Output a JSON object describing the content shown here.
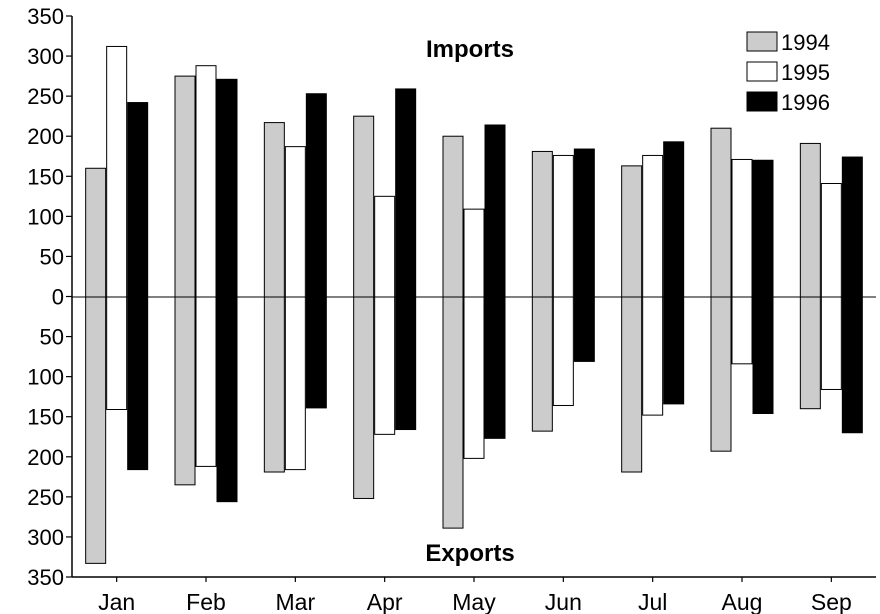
{
  "chart_data": {
    "type": "bar",
    "categories": [
      "Jan",
      "Feb",
      "Mar",
      "Apr",
      "May",
      "Jun",
      "Jul",
      "Aug",
      "Sep"
    ],
    "series": [
      {
        "name": "1994",
        "color": "#cccccc",
        "imports": [
          160,
          275,
          217,
          225,
          200,
          181,
          163,
          210,
          191
        ],
        "exports": [
          -333,
          -235,
          -219,
          -252,
          -289,
          -168,
          -219,
          -193,
          -140
        ]
      },
      {
        "name": "1995",
        "color": "#ffffff",
        "imports": [
          312,
          288,
          187,
          125,
          109,
          176,
          176,
          171,
          141
        ],
        "exports": [
          -141,
          -212,
          -216,
          -172,
          -202,
          -136,
          -148,
          -84,
          -116
        ]
      },
      {
        "name": "1996",
        "color": "#000000",
        "imports": [
          242,
          271,
          253,
          259,
          214,
          184,
          193,
          170,
          174
        ],
        "exports": [
          -216,
          -256,
          -139,
          -166,
          -177,
          -81,
          -134,
          -146,
          -170
        ]
      }
    ],
    "annotations": {
      "top": "Imports",
      "bottom": "Exports"
    },
    "y_ticks": [
      "350",
      "300",
      "250",
      "200",
      "150",
      "100",
      "50",
      "0",
      "50",
      "100",
      "150",
      "200",
      "250",
      "300",
      "350"
    ],
    "ylim": [
      -350,
      350
    ],
    "grid": false,
    "legend_position": "top-right"
  }
}
